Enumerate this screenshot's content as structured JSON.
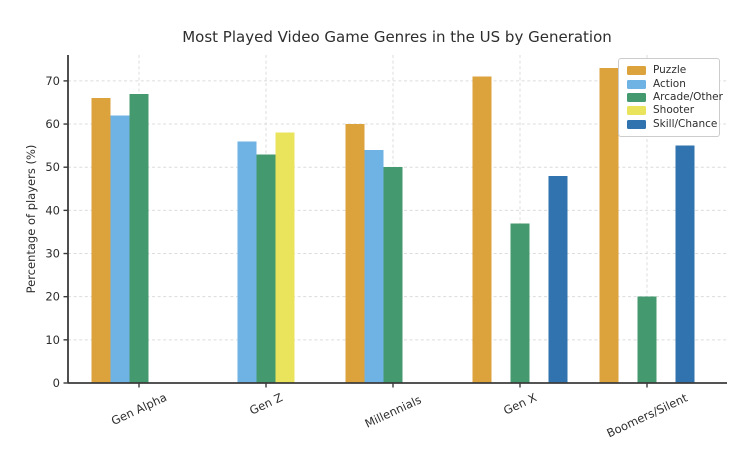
{
  "chart_data": {
    "type": "bar",
    "title": "Most Played Video Game Genres in the US by Generation",
    "xlabel": "",
    "ylabel": "Percentage of players (%)",
    "categories": [
      "Gen Alpha",
      "Gen Z",
      "Millennials",
      "Gen X",
      "Boomers/Silent"
    ],
    "series": [
      {
        "name": "Puzzle",
        "color": "#DCA23C",
        "values": [
          66,
          null,
          60,
          71,
          73
        ]
      },
      {
        "name": "Action",
        "color": "#6FB2E4",
        "values": [
          62,
          56,
          54,
          null,
          null
        ]
      },
      {
        "name": "Arcade/Other",
        "color": "#44996E",
        "values": [
          67,
          53,
          50,
          37,
          20
        ]
      },
      {
        "name": "Shooter",
        "color": "#EAE45C",
        "values": [
          null,
          58,
          null,
          null,
          null
        ]
      },
      {
        "name": "Skill/Chance",
        "color": "#3173AE",
        "values": [
          null,
          null,
          null,
          48,
          55
        ]
      }
    ],
    "yticks": [
      0,
      10,
      20,
      30,
      40,
      50,
      60,
      70
    ],
    "ylim": [
      0,
      76
    ],
    "grid": true,
    "grid_style": "dashed",
    "legend_position": "upper right",
    "axis_color": "#3b3b3b",
    "grid_color": "#dcdcdc",
    "text_color": "#2e2e2e",
    "background": "#ffffff"
  }
}
